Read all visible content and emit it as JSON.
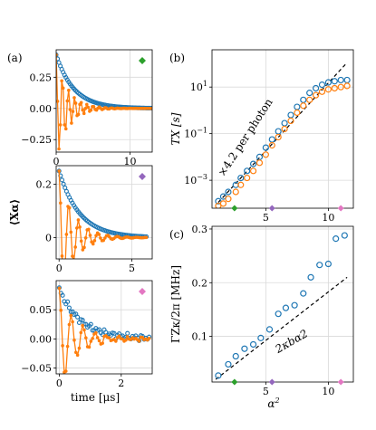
{
  "chart_data": [
    {
      "panel": "(a)",
      "type": "line",
      "marker": {
        "shape": "diamond",
        "color": "#2ca02c"
      },
      "xlim": [
        0,
        13
      ],
      "ylim": [
        -0.35,
        0.47
      ],
      "xticks": [
        0,
        10
      ],
      "xtick_labels": [
        "0",
        "10"
      ],
      "yticks": [
        -0.25,
        0,
        0.25
      ],
      "ytick_labels": [
        "−0.25",
        "0.00",
        "0.25"
      ],
      "grid": true,
      "series": [
        {
          "color": "#1f77b4",
          "style": "markers",
          "amplitude": 0.43,
          "decay_tau": 2.4,
          "oscillation_freq": 0,
          "t_end": 13
        },
        {
          "color": "#ff7f0e",
          "style": "line+markers",
          "amplitude": 0.43,
          "decay_tau": 1.6,
          "oscillation_freq": 1.2,
          "t_end": 13
        }
      ]
    },
    {
      "type": "line",
      "marker": {
        "shape": "diamond",
        "color": "#9467bd"
      },
      "xlim": [
        -0.2,
        6.4
      ],
      "ylim": [
        -0.08,
        0.27
      ],
      "xticks": [
        0,
        5
      ],
      "xtick_labels": [
        "0",
        "5"
      ],
      "yticks": [
        0,
        0.2
      ],
      "ytick_labels": [
        "0",
        "0.2"
      ],
      "ylabel": "⟨Xα⟩",
      "grid": true,
      "series": [
        {
          "color": "#1f77b4",
          "style": "markers",
          "amplitude": 0.25,
          "decay_tau": 1.4,
          "oscillation_freq": 0,
          "t_end": 6
        },
        {
          "color": "#ff7f0e",
          "style": "line+markers",
          "amplitude": 0.25,
          "decay_tau": 1.0,
          "oscillation_freq": 1.5,
          "t_end": 6
        }
      ]
    },
    {
      "type": "line",
      "marker": {
        "shape": "diamond",
        "color": "#e377c2"
      },
      "xlim": [
        -0.1,
        3.0
      ],
      "ylim": [
        -0.06,
        0.1
      ],
      "xticks": [
        0,
        2
      ],
      "xtick_labels": [
        "0",
        "2"
      ],
      "yticks": [
        -0.05,
        0,
        0.05
      ],
      "ytick_labels": [
        "−0.05",
        "0.00",
        "0.05"
      ],
      "xlabel": "time [μs]",
      "grid": true,
      "series": [
        {
          "color": "#1f77b4",
          "style": "markers",
          "amplitude": 0.085,
          "decay_tau": 0.7,
          "oscillation_freq": 0,
          "noise": 0.006,
          "t_end": 2.9
        },
        {
          "color": "#ff7f0e",
          "style": "line+markers",
          "amplitude": 0.085,
          "decay_tau": 0.55,
          "oscillation_freq": 2.6,
          "noise": 0.004,
          "t_end": 2.9
        }
      ]
    },
    {
      "panel": "(b)",
      "type": "scatter",
      "yscale": "log",
      "xlim": [
        0.7,
        12.0
      ],
      "ylim_log10": [
        -4.2,
        2.6
      ],
      "xticks": [
        5,
        10
      ],
      "xtick_labels": [
        "5",
        "10"
      ],
      "yticks_log10": [
        -3,
        -1,
        1
      ],
      "ytick_labels": [
        "10−3",
        "10−1",
        "101"
      ],
      "ylabel": "TX [s]",
      "grid": true,
      "annotation": "×4.2 per photon",
      "fit_line": {
        "style": "dashed",
        "color": "#000000",
        "x": [
          1.2,
          11.5
        ],
        "log10_y": [
          -3.95,
          2.05
        ]
      },
      "series": [
        {
          "color": "#1f77b4",
          "style": "open-circles",
          "x": [
            1.2,
            1.6,
            2.0,
            2.6,
            3.0,
            3.5,
            4.0,
            4.5,
            5.0,
            5.5,
            6.0,
            6.5,
            7.0,
            7.5,
            8.0,
            8.5,
            9.0,
            9.5,
            10.0,
            10.5,
            11.0,
            11.5
          ],
          "log10_y": [
            -3.9,
            -3.7,
            -3.5,
            -3.2,
            -2.9,
            -2.6,
            -2.3,
            -2.0,
            -1.6,
            -1.25,
            -0.9,
            -0.55,
            -0.2,
            0.15,
            0.45,
            0.75,
            0.95,
            1.1,
            1.2,
            1.25,
            1.3,
            1.3
          ]
        },
        {
          "color": "#ff7f0e",
          "style": "open-circles",
          "x": [
            1.2,
            1.6,
            2.0,
            2.6,
            3.0,
            3.5,
            4.0,
            4.5,
            5.0,
            5.5,
            6.0,
            6.5,
            7.0,
            7.5,
            8.0,
            8.5,
            9.0,
            9.5,
            10.0,
            10.5,
            11.0,
            11.5
          ],
          "log10_y": [
            -4.1,
            -4.0,
            -3.8,
            -3.5,
            -3.2,
            -2.9,
            -2.6,
            -2.25,
            -1.9,
            -1.5,
            -1.15,
            -0.8,
            -0.45,
            -0.1,
            0.2,
            0.45,
            0.65,
            0.8,
            0.9,
            0.95,
            1.0,
            1.05
          ]
        }
      ],
      "markers": [
        {
          "x": 2.5,
          "color": "#2ca02c"
        },
        {
          "x": 5.5,
          "color": "#9467bd"
        },
        {
          "x": 11.0,
          "color": "#e377c2"
        }
      ]
    },
    {
      "panel": "(c)",
      "type": "scatter",
      "xlim": [
        0.7,
        12.0
      ],
      "ylim": [
        0.015,
        0.305
      ],
      "xticks": [
        5,
        10
      ],
      "xtick_labels": [
        "5",
        "10"
      ],
      "yticks": [
        0.1,
        0.2,
        0.3
      ],
      "ytick_labels": [
        "0.1",
        "0.2",
        "0.3"
      ],
      "xlabel": "α2",
      "ylabel": "ΓZκ/2π [MHz]",
      "grid": true,
      "annotation": "2κbα2",
      "fit_line": {
        "style": "dashed",
        "color": "#000000",
        "x": [
          1.0,
          11.5
        ],
        "y": [
          0.02,
          0.21
        ]
      },
      "series": [
        {
          "color": "#1f77b4",
          "style": "open-circles",
          "x": [
            1.2,
            2.0,
            2.6,
            3.3,
            4.0,
            4.6,
            5.3,
            6.0,
            6.6,
            7.3,
            8.0,
            8.6,
            9.3,
            10.0,
            10.6,
            11.3
          ],
          "y": [
            0.027,
            0.048,
            0.063,
            0.077,
            0.085,
            0.097,
            0.113,
            0.142,
            0.153,
            0.158,
            0.18,
            0.21,
            0.233,
            0.235,
            0.282,
            0.288
          ]
        }
      ],
      "markers": [
        {
          "x": 2.5,
          "color": "#2ca02c"
        },
        {
          "x": 5.5,
          "color": "#9467bd"
        },
        {
          "x": 11.0,
          "color": "#e377c2"
        }
      ]
    }
  ]
}
